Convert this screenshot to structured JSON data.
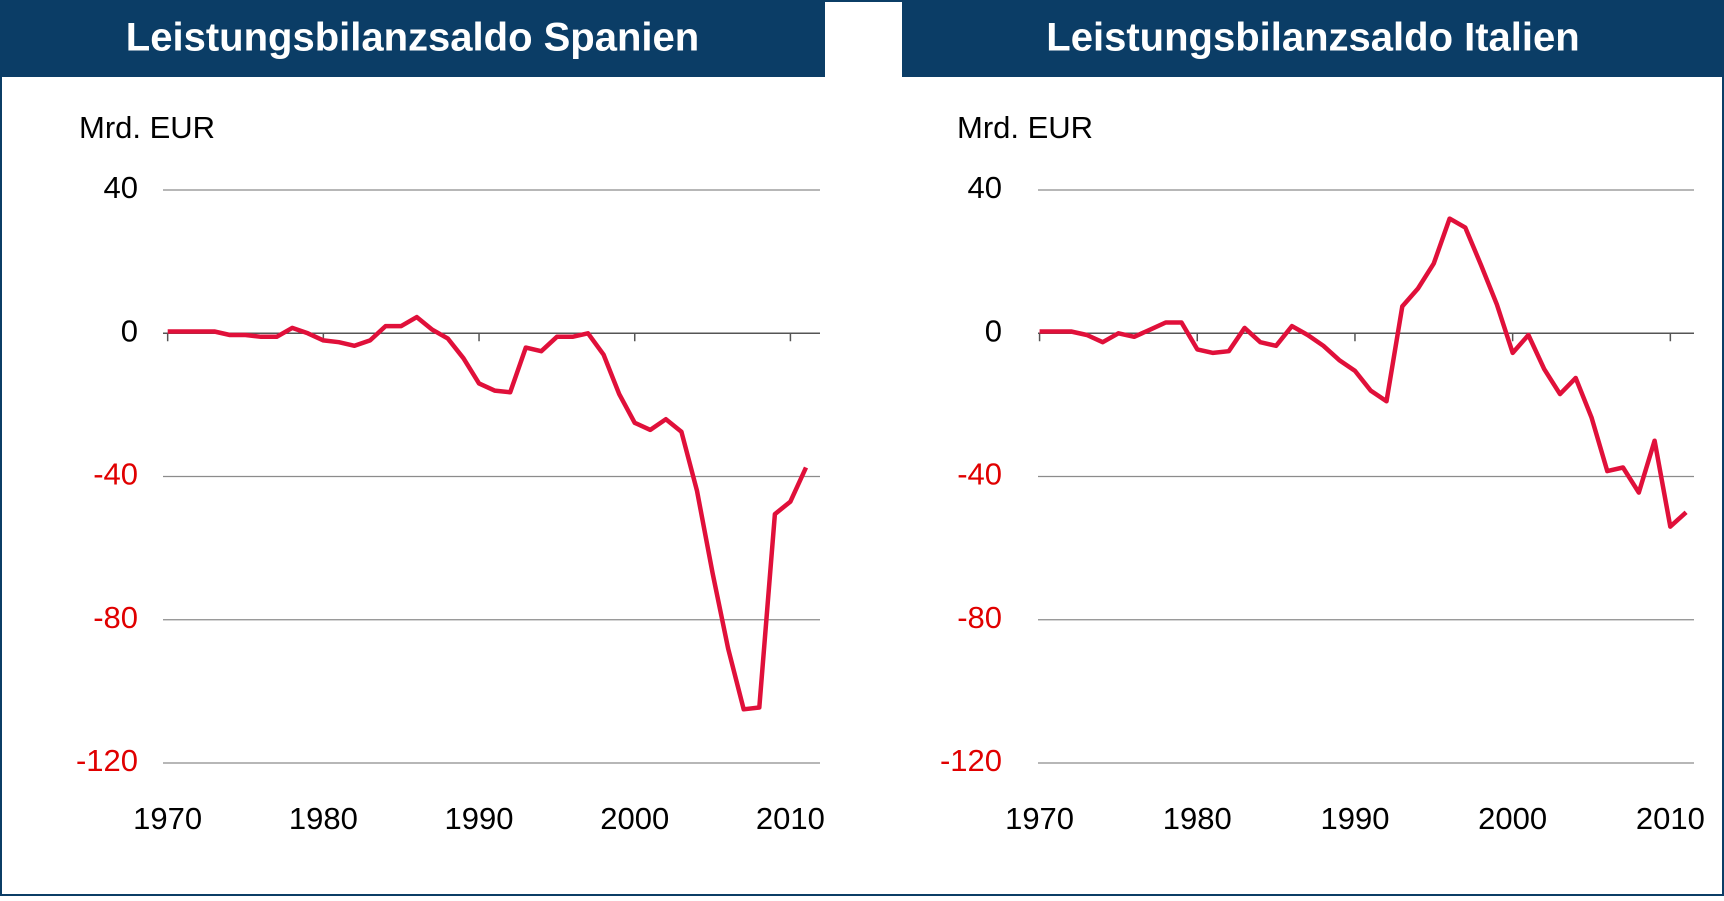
{
  "chart_data": [
    {
      "type": "line",
      "title": "Leistungsbilanzsaldo Spanien",
      "y_label": "Mrd. EUR",
      "x": [
        1970,
        1971,
        1972,
        1973,
        1974,
        1975,
        1976,
        1977,
        1978,
        1979,
        1980,
        1981,
        1982,
        1983,
        1984,
        1985,
        1986,
        1987,
        1988,
        1989,
        1990,
        1991,
        1992,
        1993,
        1994,
        1995,
        1996,
        1997,
        1998,
        1999,
        2000,
        2001,
        2002,
        2003,
        2004,
        2005,
        2006,
        2007,
        2008,
        2009,
        2010,
        2011
      ],
      "values": [
        0.5,
        0.5,
        0.5,
        0.5,
        -0.5,
        -0.5,
        -1,
        -1,
        1.5,
        0,
        -2,
        -2.5,
        -3.5,
        -2,
        2,
        2,
        4.5,
        1,
        -1.5,
        -7,
        -14,
        -16,
        -16.5,
        -4,
        -5,
        -1,
        -1,
        0,
        -6,
        -17,
        -25,
        -27,
        -24,
        -27.5,
        -44,
        -67,
        -88,
        -105,
        -104.5,
        -50.5,
        -47,
        -37.5
      ],
      "color": "#e0103a",
      "xlim": [
        1969.7,
        2011.9
      ],
      "xticks": [
        1970,
        1980,
        1990,
        2000,
        2010
      ],
      "ylim": [
        -120,
        40
      ],
      "yticks": [
        -120,
        -80,
        -40,
        0,
        40
      ],
      "grid": true,
      "tick_color": "#000000",
      "negative_tick_color": "#e00000"
    },
    {
      "type": "line",
      "title": "Leistungsbilanzsaldo Italien",
      "y_label": "Mrd. EUR",
      "x": [
        1970,
        1971,
        1972,
        1973,
        1974,
        1975,
        1976,
        1977,
        1978,
        1979,
        1980,
        1981,
        1982,
        1983,
        1984,
        1985,
        1986,
        1987,
        1988,
        1989,
        1990,
        1991,
        1992,
        1993,
        1994,
        1995,
        1996,
        1997,
        1998,
        1999,
        2000,
        2001,
        2002,
        2003,
        2004,
        2005,
        2006,
        2007,
        2008,
        2009,
        2010,
        2011
      ],
      "values": [
        0.5,
        0.5,
        0.5,
        -0.5,
        -2.5,
        0,
        -1,
        1,
        3,
        3,
        -4.5,
        -5.5,
        -5,
        1.5,
        -2.5,
        -3.5,
        2,
        -0.5,
        -3.5,
        -7.5,
        -10.5,
        -16,
        -19,
        7.5,
        12.5,
        19.5,
        32,
        29.5,
        19,
        8,
        -5.5,
        -0.5,
        -10,
        -17,
        -12.5,
        -23.5,
        -38.5,
        -37.5,
        -44.5,
        -30,
        -54,
        -50
      ],
      "color": "#e0103a",
      "xlim": [
        1969.9,
        2011.5
      ],
      "xticks": [
        1970,
        1980,
        1990,
        2000,
        2010
      ],
      "ylim": [
        -120,
        40
      ],
      "yticks": [
        -120,
        -80,
        -40,
        0,
        40
      ],
      "grid": true,
      "tick_color": "#000000",
      "negative_tick_color": "#e00000"
    }
  ]
}
